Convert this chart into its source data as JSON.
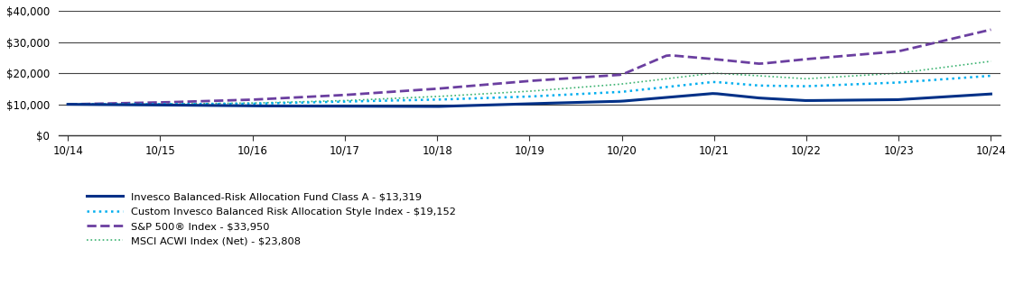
{
  "xtick_labels": [
    "10/14",
    "10/15",
    "10/16",
    "10/17",
    "10/18",
    "10/19",
    "10/20",
    "10/21",
    "10/22",
    "10/23",
    "10/24"
  ],
  "yticks": [
    0,
    10000,
    20000,
    30000,
    40000
  ],
  "ytick_labels": [
    "$0",
    "$10,000",
    "$20,000",
    "$30,000",
    "$40,000"
  ],
  "legend_labels": [
    "Invesco Balanced-Risk Allocation Fund Class A - $13,319",
    "Custom Invesco Balanced Risk Allocation Style Index - $19,152",
    "S&P 500® Index - $33,950",
    "MSCI ACWI Index (Net) - $23,808"
  ],
  "fund_ctrl_x": [
    0,
    1,
    2,
    3,
    4,
    5,
    6,
    7,
    7.5,
    8,
    9,
    10
  ],
  "fund_ctrl_y": [
    10000,
    9800,
    9500,
    9400,
    9300,
    10200,
    11000,
    13500,
    12000,
    11200,
    11500,
    13319
  ],
  "ci_ctrl_x": [
    0,
    1,
    2,
    3,
    4,
    5,
    6,
    7,
    7.5,
    8,
    9,
    10
  ],
  "ci_ctrl_y": [
    10000,
    10050,
    10200,
    10900,
    11500,
    12500,
    14000,
    17200,
    16000,
    15800,
    17000,
    19152
  ],
  "sp_ctrl_x": [
    0,
    1,
    2,
    3,
    4,
    5,
    6,
    6.5,
    7,
    7.5,
    8,
    9,
    10
  ],
  "sp_ctrl_y": [
    10000,
    10600,
    11500,
    13000,
    15000,
    17500,
    19500,
    25800,
    24500,
    23000,
    24500,
    27000,
    33950
  ],
  "msci_ctrl_x": [
    0,
    1,
    2,
    3,
    4,
    5,
    6,
    7,
    7.3,
    8,
    9,
    10
  ],
  "msci_ctrl_y": [
    10000,
    10100,
    10400,
    11200,
    12500,
    14200,
    16500,
    20000,
    19500,
    18200,
    20000,
    23808
  ],
  "color_fund": "#003087",
  "color_ci": "#00AEEF",
  "color_sp": "#6B3FA0",
  "color_msci": "#3CB371",
  "background_color": "#ffffff"
}
